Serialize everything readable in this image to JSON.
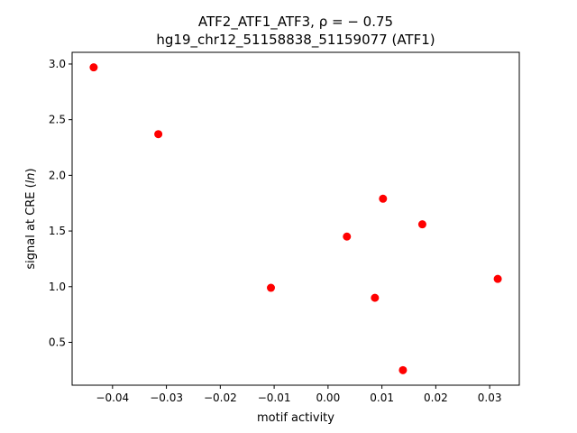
{
  "chart_data": {
    "type": "scatter",
    "title_line1": "ATF2_ATF1_ATF3, ρ = − 0.75",
    "title_line2": "hg19_chr12_51158838_51159077 (ATF1)",
    "xlabel": "motif activity",
    "ylabel": "signal at CRE (ln)",
    "xlim": [
      -0.0475,
      0.0355
    ],
    "ylim": [
      0.115,
      3.105
    ],
    "xticks": [
      -0.04,
      -0.03,
      -0.02,
      -0.01,
      0.0,
      0.01,
      0.02,
      0.03
    ],
    "xtick_labels": [
      "−0.04",
      "−0.03",
      "−0.02",
      "−0.01",
      "0.00",
      "0.01",
      "0.02",
      "0.03"
    ],
    "yticks": [
      0.5,
      1.0,
      1.5,
      2.0,
      2.5,
      3.0
    ],
    "ytick_labels": [
      "0.5",
      "1.0",
      "1.5",
      "2.0",
      "2.5",
      "3.0"
    ],
    "grid": false,
    "marker_color": "#ff0000",
    "points": [
      {
        "x": -0.0435,
        "y": 2.97
      },
      {
        "x": -0.0315,
        "y": 2.37
      },
      {
        "x": -0.0106,
        "y": 0.99
      },
      {
        "x": 0.0035,
        "y": 1.45
      },
      {
        "x": 0.0087,
        "y": 0.9
      },
      {
        "x": 0.0102,
        "y": 1.79
      },
      {
        "x": 0.0139,
        "y": 0.25
      },
      {
        "x": 0.0175,
        "y": 1.56
      },
      {
        "x": 0.0315,
        "y": 1.07
      }
    ]
  }
}
